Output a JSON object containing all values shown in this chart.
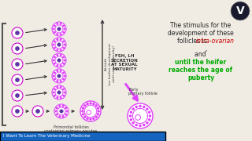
{
  "bg_color": "#f0ece4",
  "fsh_lh_text": "FSH, LH\nSECRETION\nAT SEXUAL\nMATURITY",
  "at_birth_text": "At birth\n(no further development\nuntil sexual maturity)",
  "early_primary_text": "Early\nprimary follicle",
  "primordial_text": "Primordial follicles\ncontaining primary oocytes",
  "footer_text": "I Want To Learn The Veterinary Medicine",
  "footer_bg": "#1565c0",
  "footer_fg": "#ffffff",
  "pink_color": "#e040fb",
  "dark_pink": "#cc00cc",
  "small_dot_color": "#5c35a0",
  "magenta_arrow": "#e040fb",
  "text_color": "#222222",
  "red_color": "#cc0000",
  "green_color": "#00aa00",
  "logo_bg": "#1a1a2e",
  "logo_text": "V"
}
